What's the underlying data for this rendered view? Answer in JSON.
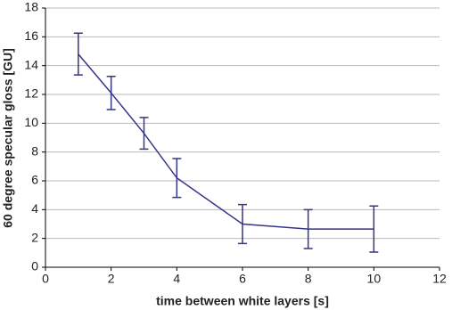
{
  "chart_data": {
    "type": "line",
    "x_label": "time between white layers [s]",
    "y_label": "60 degree specular gloss [GU]",
    "x": [
      1,
      2,
      3,
      4,
      6,
      8,
      10
    ],
    "series": [
      {
        "color": "#35358a",
        "values": [
          14.8,
          12.1,
          9.3,
          6.2,
          3.0,
          2.65,
          2.65
        ],
        "errors": [
          1.45,
          1.15,
          1.1,
          1.35,
          1.35,
          1.35,
          1.6
        ]
      }
    ],
    "xlim": [
      0,
      12
    ],
    "xticks": [
      0,
      2,
      4,
      6,
      8,
      10,
      12
    ],
    "ylim": [
      0,
      18
    ],
    "yticks": [
      0,
      2,
      4,
      6,
      8,
      10,
      12,
      14,
      16,
      18
    ],
    "grid": true
  }
}
